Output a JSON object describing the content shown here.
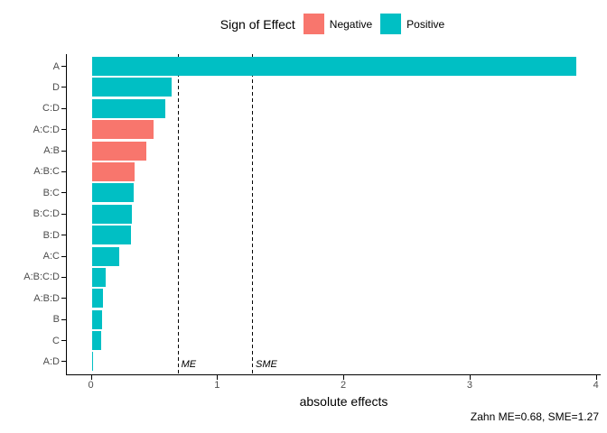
{
  "caption": "Zahn ME=0.68, SME=1.27",
  "chart_data": {
    "type": "bar",
    "orientation": "horizontal",
    "title": "",
    "xlabel": "absolute effects",
    "ylabel": "",
    "legend": {
      "title": "Sign of Effect",
      "position": "top",
      "items": [
        {
          "label": "Negative",
          "color": "#F8766D"
        },
        {
          "label": "Positive",
          "color": "#00BFC4"
        }
      ]
    },
    "categories": [
      "A",
      "D",
      "C:D",
      "A:C:D",
      "A:B",
      "A:B:C",
      "B:C",
      "B:C:D",
      "B:D",
      "A:C",
      "A:B:C:D",
      "A:B:D",
      "B",
      "C",
      "A:D"
    ],
    "values": [
      3.84,
      0.63,
      0.58,
      0.49,
      0.43,
      0.34,
      0.33,
      0.32,
      0.31,
      0.22,
      0.11,
      0.09,
      0.08,
      0.075,
      0.005
    ],
    "signs": [
      "Positive",
      "Positive",
      "Positive",
      "Negative",
      "Negative",
      "Negative",
      "Positive",
      "Positive",
      "Positive",
      "Positive",
      "Positive",
      "Positive",
      "Positive",
      "Positive",
      "Positive"
    ],
    "colors": {
      "Negative": "#F8766D",
      "Positive": "#00BFC4"
    },
    "x_ticks": [
      0,
      1,
      2,
      3,
      4
    ],
    "xlim": [
      -0.19,
      4.03
    ],
    "grid": false,
    "reference_lines": [
      {
        "label": "ME",
        "value": 0.68
      },
      {
        "label": "SME",
        "value": 1.27
      }
    ]
  }
}
